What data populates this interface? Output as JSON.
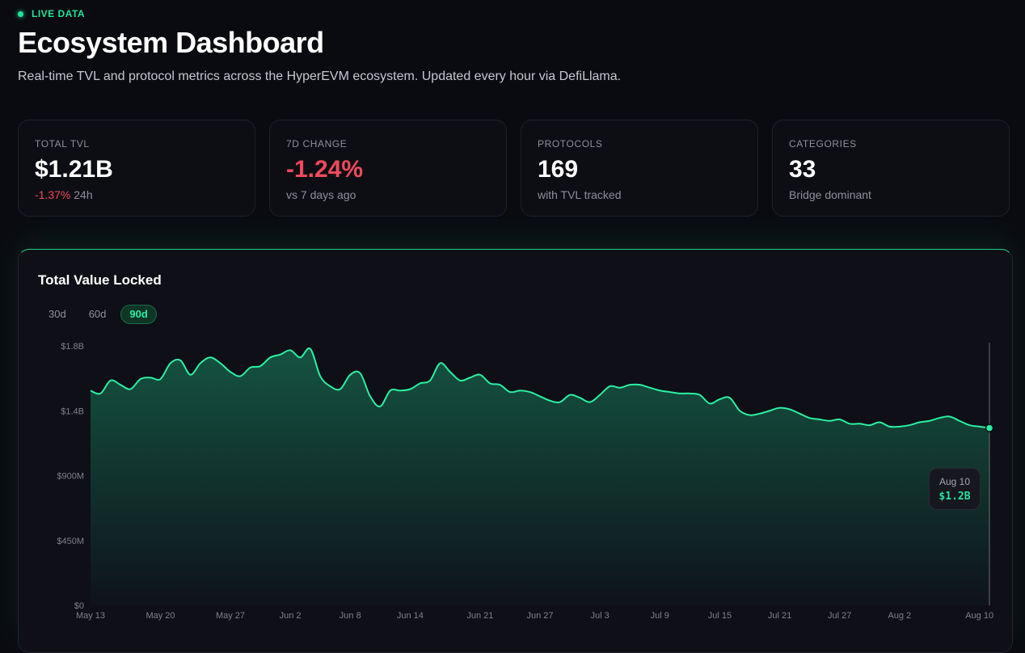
{
  "header": {
    "live_label": "LIVE DATA",
    "title": "Ecosystem Dashboard",
    "subtitle": "Real-time TVL and protocol metrics across the HyperEVM ecosystem. Updated every hour via DefiLlama."
  },
  "stats": [
    {
      "label": "TOTAL TVL",
      "value": "$1.21B",
      "sub_change": "-1.37%",
      "sub_text": "24h"
    },
    {
      "label": "7D CHANGE",
      "value": "-1.24%",
      "sub_text": "vs 7 days ago"
    },
    {
      "label": "PROTOCOLS",
      "value": "169",
      "sub_text": "with TVL tracked"
    },
    {
      "label": "CATEGORIES",
      "value": "33",
      "sub_text": "Bridge dominant"
    }
  ],
  "chart_panel": {
    "title": "Total Value Locked",
    "range_tabs": [
      "30d",
      "60d",
      "90d"
    ],
    "active_range": "90d",
    "tooltip": {
      "date": "Aug 10",
      "value": "$1.2B"
    }
  },
  "colors": {
    "accent": "#22e39a",
    "negative": "#f04a5c",
    "background": "#0a0b10"
  },
  "chart_data": {
    "type": "area",
    "title": "Total Value Locked",
    "y_tick_labels": [
      "$0",
      "$450M",
      "$900M",
      "$1.4B",
      "$1.8B"
    ],
    "y_ticks": [
      0,
      450,
      900,
      1350,
      1800
    ],
    "ylim": [
      0,
      1800
    ],
    "y_unit": "$M",
    "x_tick_labels": [
      "May 13",
      "May 20",
      "May 27",
      "Jun 2",
      "Jun 8",
      "Jun 14",
      "Jun 21",
      "Jun 27",
      "Jul 3",
      "Jul 9",
      "Jul 15",
      "Jul 21",
      "Jul 27",
      "Aug 2",
      "Aug 10"
    ],
    "x_ticks": [
      0,
      7,
      14,
      20,
      26,
      32,
      39,
      45,
      51,
      57,
      63,
      69,
      75,
      81,
      89
    ],
    "series": [
      {
        "values": [
          1490,
          1470,
          1560,
          1530,
          1500,
          1570,
          1580,
          1570,
          1680,
          1700,
          1600,
          1680,
          1720,
          1680,
          1620,
          1590,
          1650,
          1660,
          1720,
          1740,
          1770,
          1720,
          1780,
          1590,
          1520,
          1500,
          1600,
          1610,
          1450,
          1380,
          1490,
          1490,
          1500,
          1540,
          1560,
          1680,
          1620,
          1560,
          1580,
          1600,
          1540,
          1530,
          1480,
          1490,
          1480,
          1450,
          1420,
          1410,
          1460,
          1440,
          1410,
          1460,
          1520,
          1510,
          1530,
          1530,
          1510,
          1490,
          1480,
          1470,
          1470,
          1460,
          1400,
          1430,
          1440,
          1350,
          1320,
          1330,
          1350,
          1370,
          1360,
          1330,
          1300,
          1290,
          1280,
          1290,
          1260,
          1260,
          1250,
          1270,
          1240,
          1240,
          1250,
          1270,
          1280,
          1300,
          1310,
          1280,
          1250,
          1240,
          1230
        ]
      }
    ],
    "grid": false,
    "legend": "none"
  }
}
